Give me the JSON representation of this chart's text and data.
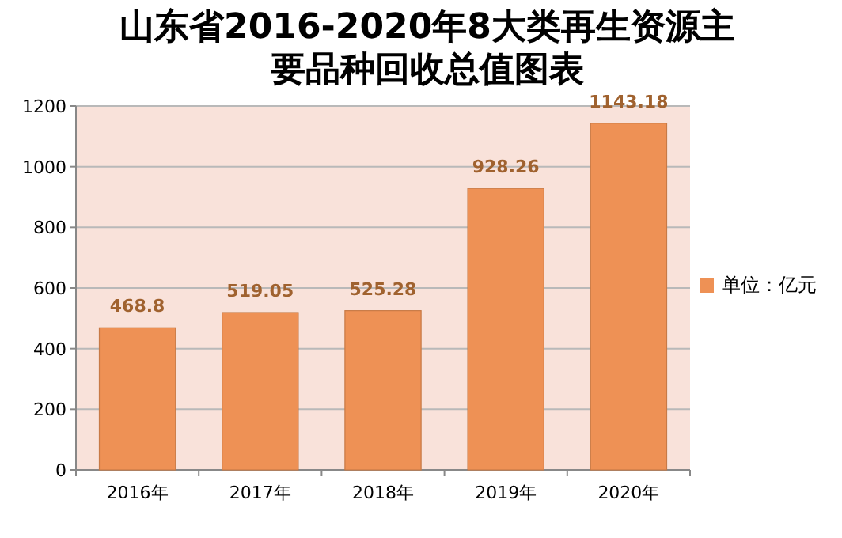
{
  "chart_data": {
    "type": "bar",
    "title": "山东省2016-2020年8大类再生资源主要品种回收总值图表",
    "categories": [
      "2016年",
      "2017年",
      "2018年",
      "2019年",
      "2020年"
    ],
    "series": [
      {
        "name": "单位：亿元",
        "color": "#ee9155",
        "values": [
          468.8,
          519.05,
          525.28,
          928.26,
          1143.18
        ]
      }
    ],
    "ylim": [
      0,
      1200
    ],
    "yticks": [
      0,
      200,
      400,
      600,
      800,
      1000,
      1200
    ],
    "grid": "y",
    "legend": "right",
    "data_labels": true
  }
}
